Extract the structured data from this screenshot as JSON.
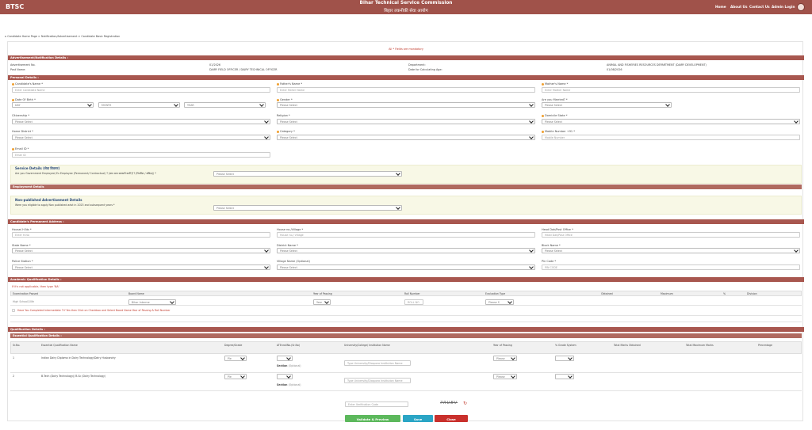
{
  "header": {
    "brand": "BTSC",
    "title_en": "Bihar Technical Service Commission",
    "title_hi": "बिहार तकनीकी सेवा आयोग",
    "nav": [
      "Home",
      "About Us",
      "Contact Us",
      "Admin Login"
    ]
  },
  "breadcrumb": "⌂ Candidate Home Page > Notification/Advertisement > Candidate Basic Registration",
  "required_note": "All * Fields are mandatory",
  "advt": {
    "heading": "Advertisement/Notification Details :",
    "advt_no_label": "Advertisement No.",
    "advt_no": "01/2026",
    "post_label": "Post Name:",
    "post": "DAIRY FIELD OFFICER / DAIRY TECHNICAL OFFICER",
    "dept_label": "Department:",
    "dept": "ANIMAL AND FISHERIES RESOURCES DEPARTMENT (DAIRY DEVELOPMENT)",
    "date_label": "Date for Calculating Age:",
    "date": "01/08/2026"
  },
  "personal": {
    "heading": "Personal Details :",
    "name_label": "Candidate's Name *",
    "name_ph": "Enter Candidate Name",
    "father_label": "Father's Name *",
    "father_ph": "Enter Father Name",
    "mother_label": "Mother's Name *",
    "mother_ph": "Enter Mother Name",
    "dob_label": "Date Of Birth *",
    "dob_day": "DAY",
    "dob_month": "MONTH",
    "dob_year": "YEAR",
    "gender_label": "Gender *",
    "gender_val": "Please Select",
    "married_label": "Are you Married? *",
    "married_val": "Please Select",
    "citizen_label": "Citizenship *",
    "citizen_val": "Please Select",
    "religion_label": "Religion *",
    "religion_val": "Please Select",
    "domicile_label": "Domicile State *",
    "domicile_val": "Please Select",
    "home_label": "Home District *",
    "home_val": "Please Select",
    "category_label": "Category *",
    "category_val": "Please Select",
    "mobile_label": "Mobile Number +91 *",
    "mobile_ph": "Mobile Number",
    "email_label": "Email ID *",
    "email_ph": "Email ID"
  },
  "service": {
    "title": "Service Details (सेवा विवरण)",
    "question": "Are you Government Employee/ Ex Employee (Permanent/ Contractual) ? (क्या आप सरकारी कर्मी हैं ? (नियमित / संविदा)) *",
    "val": "Please Select"
  },
  "employment": {
    "heading": "Employment Details"
  },
  "nonpub": {
    "title": "Non-published Advertisement Details",
    "question": "Were you eligible to apply Non published advt in 2023 and subsequent years *",
    "val": "Please Select"
  },
  "address": {
    "heading": "Candidate's Permanent Address :",
    "house_label": "House/ H.No *",
    "house_ph": "Enter H.No",
    "mohalla_label": "House no./Village *",
    "mohalla_ph": "House no./ Village",
    "post_label": "Head Dak/Post Office *",
    "post_ph": "Head Dak/Post Office",
    "state_label": "State Name *",
    "state_val": "Please Select",
    "district_label": "District Name *",
    "district_val": "Please Select",
    "block_label": "Block Name *",
    "block_val": "Please Select",
    "police_label": "Police Station *",
    "police_val": "Please Select",
    "village_label": "Village Name (Optional)",
    "village_val": "Please Select",
    "pin_label": "Pin Code *",
    "pin_ph": "PIN CODE"
  },
  "academic": {
    "heading": "Academic Qualification Details :",
    "note": "If it's not applicable, then type 'NA'",
    "cols": [
      "Examination Passed",
      "Board Name",
      "Year of Passing",
      "Roll Number",
      "Evaluation Type",
      "Obtained",
      "Maximum",
      "%",
      "Division"
    ],
    "row_exam": "High School/10th",
    "row_board": "Bihar Interme",
    "row_year": "Year",
    "row_roll": "ROLL NO",
    "row_eval": "Please S",
    "checkbox": "Have You Completed Intermediate ? If Yes then Click on Checkbox and Select Board Name Year of Passing & Roll Number"
  },
  "qualification": {
    "heading": "Qualification Details :",
    "sub": "Essential Qualification Details :",
    "cols": [
      "Sr.No.",
      "Essential Qualification Name",
      "Degree/Grade",
      "ATEnrollNo.(Sr.No)",
      "University/College/ Institution Name",
      "Year of Passing",
      "% Grade System",
      "Total Marks Obtained",
      "Total Maximum Marks",
      "Percentage"
    ],
    "rows": [
      {
        "sr": "1",
        "name": "Indian Dairy Diploma in Dairy Technology/Dairy Husbandry",
        "opt": "Section",
        "opt2": "(Optional)",
        "ph": "Type University/Diaspora Institution Name"
      },
      {
        "sr": "2",
        "name": "B.Tech (Dairy Technology)/ B.Sc (Dairy Technology)",
        "opt": "Section",
        "opt2": "(Optional)",
        "ph": "Type University/Diaspora Institution Name"
      }
    ],
    "sel": "Ple",
    "yr": "Please"
  },
  "captcha": {
    "ph": "Enter Verification Code",
    "code": "7RUBV"
  },
  "buttons": {
    "validate": "Validate & Preview",
    "save": "Save",
    "close": "Close"
  },
  "colors": {
    "header": "#a0524a",
    "validate": "#5cb85c",
    "save": "#2aa5c5",
    "close": "#c9302c"
  }
}
